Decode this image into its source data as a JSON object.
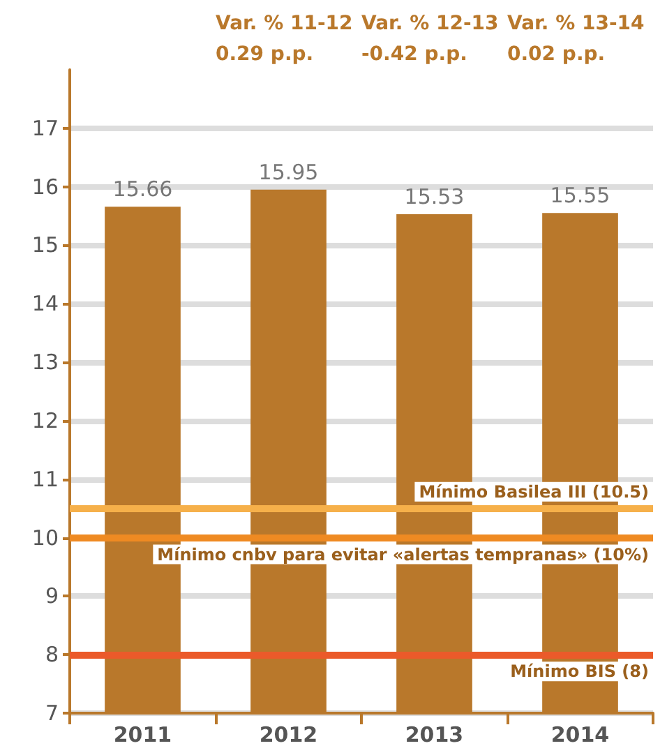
{
  "chart_data": {
    "type": "bar",
    "categories": [
      "2011",
      "2012",
      "2013",
      "2014"
    ],
    "values": [
      15.66,
      15.95,
      15.53,
      15.55
    ],
    "color": "#b9782b",
    "data_labels": true,
    "ylim": [
      7,
      18
    ],
    "yticks": [
      7,
      8,
      9,
      10,
      11,
      12,
      13,
      14,
      15,
      16,
      17
    ],
    "grid": "y",
    "ref_lines": [
      {
        "axis": "y",
        "value": 10.5,
        "label": "Mínimo Basilea III (10.5)",
        "color": "#f6b04a"
      },
      {
        "axis": "y",
        "value": 10,
        "label": "Mínimo cnbv para evitar «alertas tempranas» (10%)",
        "color": "#ef8a22"
      },
      {
        "axis": "y",
        "value": 8,
        "label": "Mínimo BIS (8)",
        "color": "#eb5a2a"
      }
    ],
    "annotations": [
      "Var. % 11-12\n0.29 p.p.",
      "Var. % 12-13\n-0.42 p.p.",
      "Var. % 13-14\n0.02 p.p."
    ]
  }
}
